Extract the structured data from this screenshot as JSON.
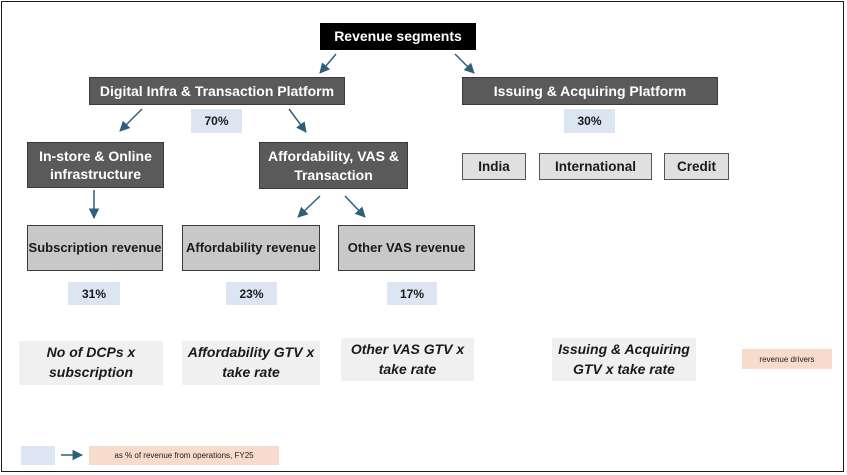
{
  "root": {
    "label": "Revenue segments"
  },
  "platforms": {
    "digital": {
      "label": "Digital Infra & Transaction Platform",
      "share": "70%"
    },
    "issuing": {
      "label": "Issuing & Acquiring Platform",
      "share": "30%"
    }
  },
  "digital_children": {
    "instore": {
      "label": "In-store & Online infrastructure"
    },
    "affordability_vas": {
      "label": "Affordability, VAS & Transaction"
    }
  },
  "issuing_children": [
    {
      "label": "India"
    },
    {
      "label": "International"
    },
    {
      "label": "Credit"
    }
  ],
  "revenue_lines": [
    {
      "label": "Subscription revenue",
      "share": "31%",
      "driver": "No of DCPs x subscription"
    },
    {
      "label": "Affordability revenue",
      "share": "23%",
      "driver": "Affordability GTV x take rate"
    },
    {
      "label": "Other VAS revenue",
      "share": "17%",
      "driver": "Other VAS GTV x take rate"
    }
  ],
  "issuing_driver": "Issuing & Acquiring GTV x take rate",
  "driver_tag": "revenue drivers",
  "legend": {
    "text": "as % of revenue from operations, FY25"
  },
  "colors": {
    "black_box": "#000000",
    "dark_box": "#5a5a5a",
    "light_box": "#c8c8c8",
    "pale_box": "#e0e0e0",
    "percent_fill": "#dbe6f2",
    "driver_fill": "#f0f0f0",
    "tag_fill": "#f8dccb",
    "arrow": "#2e5f7a"
  }
}
